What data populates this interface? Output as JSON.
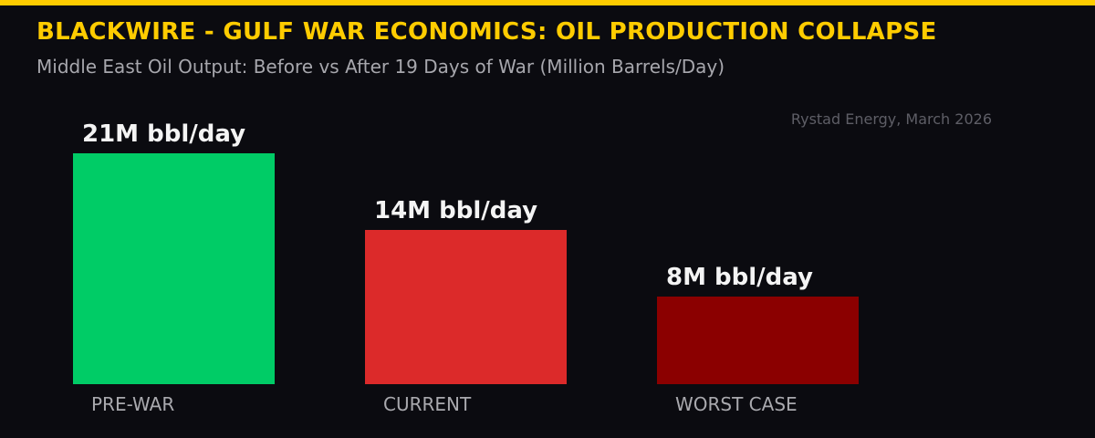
{
  "header": {
    "accent_color": "#ffcc00",
    "title": "BLACKWIRE - GULF WAR ECONOMICS: OIL PRODUCTION COLLAPSE",
    "subtitle": "Middle East Oil Output: Before vs After 19 Days of War (Million Barrels/Day)",
    "source": "Rystad Energy, March 2026"
  },
  "chart_data": {
    "type": "bar",
    "title": "BLACKWIRE - GULF WAR ECONOMICS: OIL PRODUCTION COLLAPSE",
    "subtitle": "Middle East Oil Output: Before vs After 19 Days of War (Million Barrels/Day)",
    "xlabel": "",
    "ylabel": "Million Barrels/Day",
    "ylim": [
      0,
      21
    ],
    "grid": false,
    "legend": "none",
    "categories": [
      "PRE-WAR",
      "CURRENT",
      "WORST CASE"
    ],
    "values": [
      21,
      14,
      8
    ],
    "data_labels": [
      "21M bbl/day",
      "14M bbl/day",
      "8M bbl/day"
    ],
    "colors": [
      "#00cc66",
      "#dc2a2a",
      "#8b0000"
    ],
    "annotations": [
      "Rystad Energy, March 2026"
    ]
  },
  "bars": [
    {
      "label": "PRE-WAR",
      "value_label": "21M bbl/day",
      "value": 21,
      "color": "#00cc66"
    },
    {
      "label": "CURRENT",
      "value_label": "14M bbl/day",
      "value": 14,
      "color": "#dc2a2a"
    },
    {
      "label": "WORST CASE",
      "value_label": "8M bbl/day",
      "value": 8,
      "color": "#8b0000"
    }
  ]
}
